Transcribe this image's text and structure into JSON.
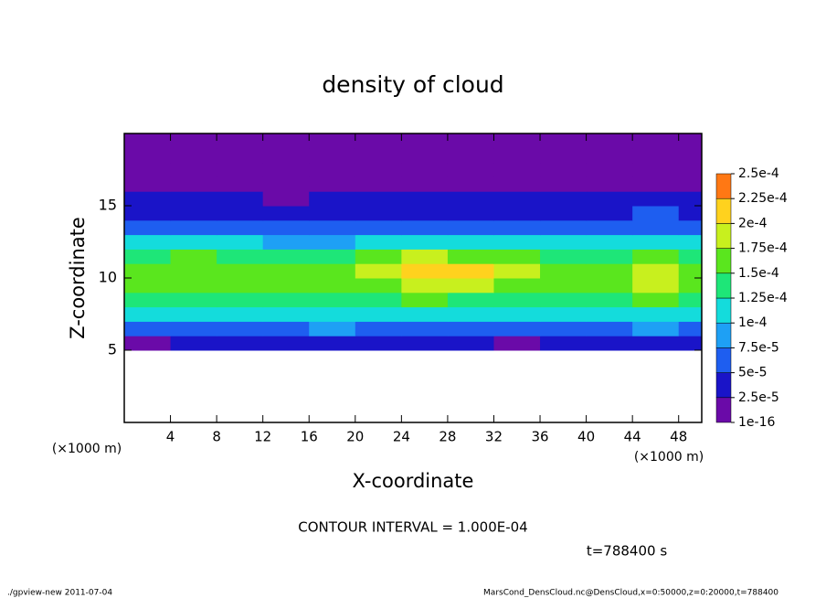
{
  "chart_data": {
    "type": "contour",
    "title": "density of cloud",
    "x_label": "X-coordinate",
    "y_label": "Z-coordinate",
    "x_unit_left": "(×1000 m)",
    "x_unit_right": "(×1000 m)",
    "contour_note": "CONTOUR INTERVAL = 1.000E-04",
    "time_note": "t=788400 s",
    "footer_left": "./gpview-new   2011-07-04",
    "footer_right": "MarsCond_DensCloud.nc@DensCloud,x=0:50000,z=0:20000,t=788400",
    "xlim": [
      0,
      50
    ],
    "ylim": [
      0,
      20
    ],
    "xticks": [
      4,
      8,
      12,
      16,
      20,
      24,
      28,
      32,
      36,
      40,
      44,
      48
    ],
    "yticks": [
      5,
      10,
      15
    ],
    "levels": [
      {
        "value": 1e-16,
        "label": "1e-16"
      },
      {
        "value": 2.5e-05,
        "label": "2.5e-5"
      },
      {
        "value": 5e-05,
        "label": "5e-5"
      },
      {
        "value": 7.5e-05,
        "label": "7.5e-5"
      },
      {
        "value": 0.0001,
        "label": "1e-4"
      },
      {
        "value": 0.000125,
        "label": "1.25e-4"
      },
      {
        "value": 0.00015,
        "label": "1.5e-4"
      },
      {
        "value": 0.000175,
        "label": "1.75e-4"
      },
      {
        "value": 0.0002,
        "label": "2e-4"
      },
      {
        "value": 0.000225,
        "label": "2.25e-4"
      },
      {
        "value": 0.00025,
        "label": "2.5e-4"
      }
    ],
    "colors": [
      "#6a0aa8",
      "#1a14c8",
      "#1e5ef0",
      "#1ea0f5",
      "#14dcdc",
      "#1ee678",
      "#5ae61e",
      "#c8f01e",
      "#ffd21e",
      "#ff7814",
      "#ff9090"
    ],
    "x": [
      2,
      6,
      10,
      14,
      18,
      22,
      26,
      30,
      34,
      38,
      42,
      46,
      50
    ],
    "y": [
      5.5,
      6.5,
      7.5,
      8.5,
      9.5,
      10.5,
      11.5,
      12.5,
      13.5,
      14.5,
      15.5,
      16.5,
      17.5,
      18.5,
      19.5
    ],
    "z": [
      [
        2e-05,
        3e-05,
        3e-05,
        3e-05,
        4e-05,
        3e-05,
        3e-05,
        3e-05,
        2e-05,
        3e-05,
        3e-05,
        3e-05,
        3e-05
      ],
      [
        7e-05,
        7e-05,
        6e-05,
        7e-05,
        8e-05,
        7e-05,
        7e-05,
        7e-05,
        6e-05,
        7e-05,
        7e-05,
        8e-05,
        7e-05
      ],
      [
        0.00011,
        0.00011,
        0.000105,
        0.00011,
        0.00011,
        0.000115,
        0.00011,
        0.00011,
        0.000105,
        0.00011,
        0.000115,
        0.00012,
        0.00011
      ],
      [
        0.00014,
        0.000145,
        0.000135,
        0.00013,
        0.00014,
        0.000145,
        0.00015,
        0.000145,
        0.00014,
        0.000135,
        0.000145,
        0.000155,
        0.00014
      ],
      [
        0.00016,
        0.000165,
        0.000155,
        0.00015,
        0.000155,
        0.00017,
        0.00018,
        0.000175,
        0.00016,
        0.000155,
        0.00017,
        0.00018,
        0.00016
      ],
      [
        0.00016,
        0.00017,
        0.000155,
        0.00015,
        0.00016,
        0.00018,
        0.000205,
        0.00021,
        0.00018,
        0.00016,
        0.00017,
        0.000185,
        0.000165
      ],
      [
        0.00014,
        0.00015,
        0.00014,
        0.00013,
        0.00014,
        0.00016,
        0.00018,
        0.00017,
        0.000155,
        0.000145,
        0.000145,
        0.000155,
        0.000145
      ],
      [
        0.000105,
        0.00011,
        0.0001,
        8e-05,
        9e-05,
        0.000105,
        0.00012,
        0.000115,
        0.000105,
        0.0001,
        0.000105,
        0.000115,
        0.00011
      ],
      [
        6e-05,
        7e-05,
        6e-05,
        5e-05,
        6e-05,
        6e-05,
        7e-05,
        7e-05,
        6e-05,
        6e-05,
        7e-05,
        7e-05,
        7e-05
      ],
      [
        4e-05,
        4e-05,
        4e-05,
        3e-05,
        3e-05,
        4e-05,
        4e-05,
        4e-05,
        4e-05,
        4e-05,
        4e-05,
        5e-05,
        4e-05
      ],
      [
        3e-05,
        2.8e-05,
        2.6e-05,
        2.4e-05,
        2.6e-05,
        3e-05,
        2.8e-05,
        2.7e-05,
        2.6e-05,
        2.8e-05,
        2.9e-05,
        3e-05,
        2.8e-05
      ],
      [
        2e-05,
        2e-05,
        2e-05,
        1.8e-05,
        1.8e-05,
        2e-05,
        2e-05,
        2e-05,
        2e-05,
        2e-05,
        2e-05,
        2e-05,
        2e-05
      ],
      [
        1.5e-05,
        1.5e-05,
        1.5e-05,
        1.5e-05,
        1.5e-05,
        1.5e-05,
        1.5e-05,
        1.5e-05,
        1.5e-05,
        1.5e-05,
        1.5e-05,
        1.5e-05,
        1.5e-05
      ],
      [
        1e-05,
        1e-05,
        1e-05,
        1e-05,
        1e-05,
        1e-05,
        1e-05,
        1e-05,
        1e-05,
        1e-05,
        1e-05,
        1e-05,
        1e-05
      ],
      [
        1e-05,
        1e-05,
        1e-05,
        1e-05,
        1e-05,
        1e-05,
        1e-05,
        1e-05,
        1e-05,
        1e-05,
        1e-05,
        1e-05,
        1e-05
      ]
    ]
  }
}
